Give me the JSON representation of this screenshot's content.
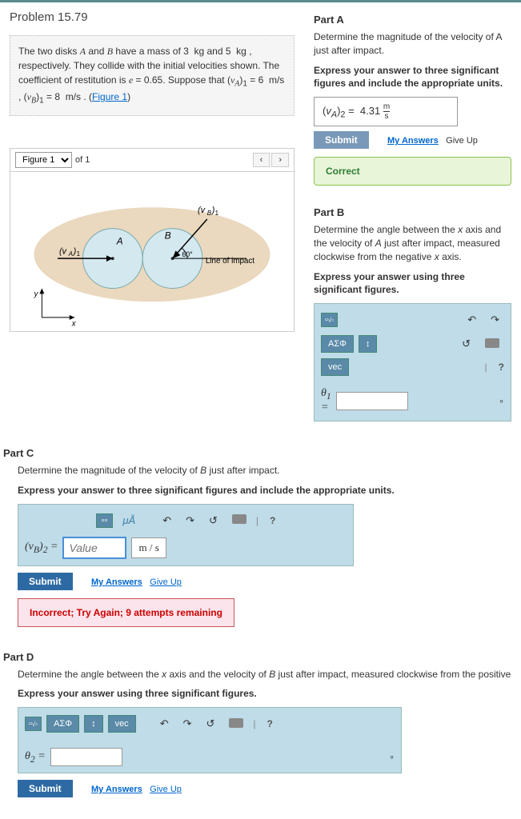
{
  "problem": {
    "title": "Problem 15.79",
    "text_html": "The two disks <i>A</i> and <i>B</i> have a mass of 3&nbsp; kg and 5&nbsp; kg , respectively. They collide with the initial velocities shown. The coefficient of restitution is <i>e</i> = 0.65. Suppose that (<i>v<sub>A</sub></i>)<sub>1</sub> = 6&nbsp; m/s , (<i>v<sub>B</sub></i>)<sub>1</sub> = 8&nbsp; m/s .",
    "figure_link": "Figure 1"
  },
  "figure": {
    "selector_label": "Figure 1",
    "of_text": "of 1",
    "labels": {
      "vA": "(v_A)_1",
      "vB": "(v_B)_1",
      "A": "A",
      "B": "B",
      "angle": "60°",
      "line": "Line of impact",
      "x": "x",
      "y": "y"
    }
  },
  "partA": {
    "header": "Part A",
    "prompt": "Determine the magnitude of the velocity of A just after impact.",
    "instr": "Express your answer to three significant figures and include the appropriate units.",
    "answer_label": "(v_A)_2 =",
    "answer_value": "4.31",
    "answer_unit": "m/s",
    "submit": "Submit",
    "my_answers": "My Answers",
    "give_up": "Give Up",
    "feedback": "Correct"
  },
  "partB": {
    "header": "Part B",
    "prompt_html": "Determine the angle between the <i>x</i> axis and the velocity of <i>A</i> just after impact, measured clockwise from the negative <i>x</i> axis.",
    "instr": "Express your answer using three significant figures.",
    "theta_label": "θ₁ =",
    "toolbar": {
      "sqrt": "√",
      "greek": "ΑΣΦ",
      "updown": "↕",
      "vec": "vec",
      "undo": "↶",
      "redo": "↷",
      "reset": "↺",
      "kb": "⌨",
      "help": "?"
    }
  },
  "partC": {
    "header": "Part C",
    "prompt_html": "Determine the magnitude of the velocity of <i>B</i> just after impact.",
    "instr": "Express your answer to three significant figures and include the appropriate units.",
    "value_placeholder": "Value",
    "unit_value": "m / s",
    "label": "(v_B)_2 =",
    "toolbar": {
      "units": "μÅ",
      "undo": "↶",
      "redo": "↷",
      "reset": "↺",
      "kb": "⌨",
      "help": "?"
    },
    "submit": "Submit",
    "my_answers": "My Answers",
    "give_up": "Give Up",
    "feedback": "Incorrect; Try Again; 9 attempts remaining"
  },
  "partD": {
    "header": "Part D",
    "prompt_html": "Determine the angle between the <i>x</i> axis and the velocity of <i>B</i> just after impact, measured clockwise from the positive",
    "instr": "Express your answer using three significant figures.",
    "theta_label": "θ₂ =",
    "toolbar": {
      "sqrt": "√",
      "greek": "ΑΣΦ",
      "updown": "↕",
      "vec": "vec",
      "undo": "↶",
      "redo": "↷",
      "reset": "↺",
      "kb": "⌨",
      "help": "?"
    },
    "submit": "Submit",
    "my_answers": "My Answers",
    "give_up": "Give Up"
  },
  "colors": {
    "header_border": "#5a8a8a",
    "panel_bg": "#bfdce8",
    "correct_bg": "#e8f5d8",
    "incorrect_bg": "#fce4ec",
    "submit_inactive": "#7a99b8",
    "submit_active": "#2d6aa3"
  }
}
